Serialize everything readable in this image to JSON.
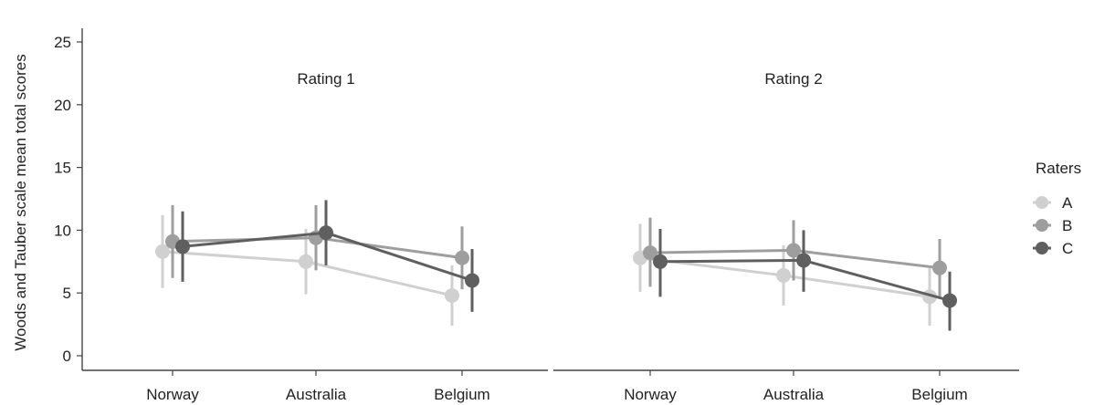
{
  "chart_data": {
    "type": "line",
    "ylabel": "Woods and Tauber scale mean total scores",
    "ylim": [
      0,
      25
    ],
    "yticks": [
      0,
      5,
      10,
      15,
      20,
      25
    ],
    "categories": [
      "Norway",
      "Australia",
      "Belgium"
    ],
    "legend": {
      "title": "Raters",
      "placement": "right"
    },
    "grid": false,
    "panels": [
      {
        "title": "Rating 1",
        "series": [
          {
            "name": "A",
            "color": "#d0d0d0",
            "values": [
              8.3,
              7.5,
              4.8
            ],
            "lower": [
              5.4,
              4.9,
              2.4
            ],
            "upper": [
              11.2,
              10.1,
              7.2
            ]
          },
          {
            "name": "B",
            "color": "#9e9e9e",
            "values": [
              9.1,
              9.4,
              7.8
            ],
            "lower": [
              6.2,
              6.8,
              5.3
            ],
            "upper": [
              12.0,
              12.0,
              10.3
            ]
          },
          {
            "name": "C",
            "color": "#5f5f5f",
            "values": [
              8.7,
              9.8,
              6.0
            ],
            "lower": [
              5.9,
              7.2,
              3.5
            ],
            "upper": [
              11.5,
              12.4,
              8.5
            ]
          }
        ]
      },
      {
        "title": "Rating 2",
        "series": [
          {
            "name": "A",
            "color": "#d0d0d0",
            "values": [
              7.8,
              6.4,
              4.7
            ],
            "lower": [
              5.1,
              4.0,
              2.4
            ],
            "upper": [
              10.5,
              8.8,
              7.0
            ]
          },
          {
            "name": "B",
            "color": "#9e9e9e",
            "values": [
              8.2,
              8.4,
              7.0
            ],
            "lower": [
              5.5,
              6.0,
              4.7
            ],
            "upper": [
              11.0,
              10.8,
              9.3
            ]
          },
          {
            "name": "C",
            "color": "#5f5f5f",
            "values": [
              7.5,
              7.6,
              4.4
            ],
            "lower": [
              4.7,
              5.1,
              2.0
            ],
            "upper": [
              10.1,
              10.0,
              6.7
            ]
          }
        ]
      }
    ]
  }
}
